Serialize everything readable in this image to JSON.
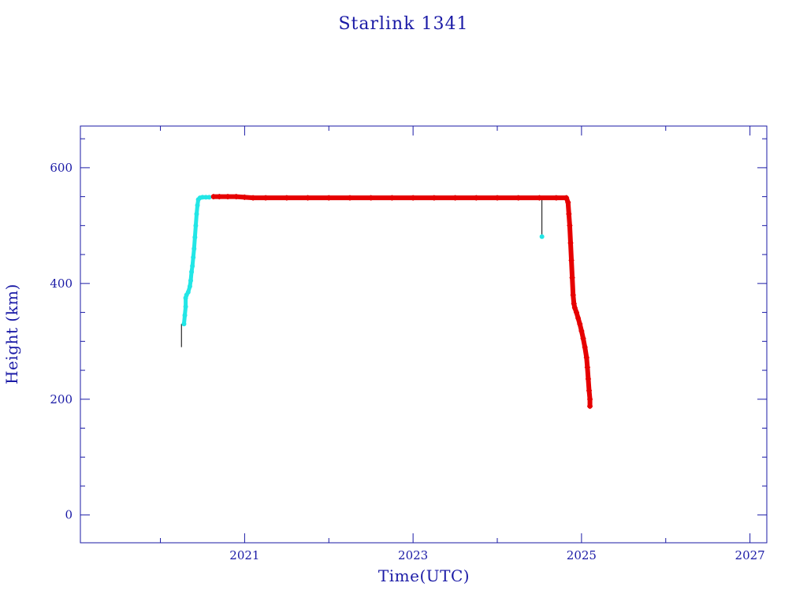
{
  "colors": {
    "axis": "#1a1aa6",
    "cyan": "#22e6e6",
    "red": "#e60000",
    "connector": "#000000"
  },
  "chart_data": {
    "type": "scatter",
    "title": "Starlink 1341",
    "xlabel": "Time(UTC)",
    "ylabel": "Height (km)",
    "xlim": [
      2019.05,
      2027.2
    ],
    "ylim": [
      -48,
      672
    ],
    "x_ticks": [
      2021,
      2023,
      2025,
      2027
    ],
    "y_ticks": [
      0,
      200,
      400,
      600
    ],
    "grid": false,
    "series": [
      {
        "color": "cyan",
        "marker": "dot",
        "points": [
          [
            2020.28,
            330
          ],
          [
            2020.29,
            345
          ],
          [
            2020.3,
            360
          ],
          [
            2020.3,
            375
          ],
          [
            2020.31,
            380
          ],
          [
            2020.33,
            385
          ],
          [
            2020.35,
            395
          ],
          [
            2020.36,
            405
          ],
          [
            2020.37,
            420
          ],
          [
            2020.38,
            430
          ],
          [
            2020.39,
            445
          ],
          [
            2020.4,
            460
          ],
          [
            2020.41,
            480
          ],
          [
            2020.42,
            500
          ],
          [
            2020.43,
            520
          ],
          [
            2020.44,
            535
          ],
          [
            2020.45,
            545
          ],
          [
            2020.47,
            548
          ],
          [
            2020.5,
            549
          ],
          [
            2020.54,
            549
          ],
          [
            2020.58,
            549
          ],
          [
            2024.53,
            481
          ]
        ]
      },
      {
        "color": "red",
        "marker": "star",
        "points": [
          [
            2020.63,
            550
          ],
          [
            2020.7,
            550
          ],
          [
            2020.8,
            550
          ],
          [
            2020.9,
            550
          ],
          [
            2021.0,
            549
          ],
          [
            2021.1,
            548
          ],
          [
            2021.25,
            548
          ],
          [
            2021.5,
            548
          ],
          [
            2021.75,
            548
          ],
          [
            2022.0,
            548
          ],
          [
            2022.25,
            548
          ],
          [
            2022.5,
            548
          ],
          [
            2022.75,
            548
          ],
          [
            2023.0,
            548
          ],
          [
            2023.25,
            548
          ],
          [
            2023.5,
            548
          ],
          [
            2023.75,
            548
          ],
          [
            2024.0,
            548
          ],
          [
            2024.25,
            548
          ],
          [
            2024.5,
            548
          ],
          [
            2024.7,
            548
          ],
          [
            2024.82,
            548
          ],
          [
            2024.84,
            540
          ],
          [
            2024.85,
            520
          ],
          [
            2024.86,
            500
          ],
          [
            2024.87,
            470
          ],
          [
            2024.88,
            440
          ],
          [
            2024.89,
            410
          ],
          [
            2024.9,
            380
          ],
          [
            2024.91,
            365
          ],
          [
            2024.92,
            358
          ],
          [
            2024.94,
            350
          ],
          [
            2024.96,
            340
          ],
          [
            2024.98,
            330
          ],
          [
            2025.0,
            318
          ],
          [
            2025.02,
            305
          ],
          [
            2025.04,
            290
          ],
          [
            2025.06,
            272
          ],
          [
            2025.07,
            255
          ],
          [
            2025.08,
            235
          ],
          [
            2025.09,
            215
          ],
          [
            2025.1,
            200
          ],
          [
            2025.1,
            188
          ]
        ]
      }
    ],
    "connectors": [
      {
        "x": 2020.25,
        "y_from": 290,
        "y_to": 330
      },
      {
        "x": 2024.53,
        "y_from": 481,
        "y_to": 548
      }
    ]
  }
}
